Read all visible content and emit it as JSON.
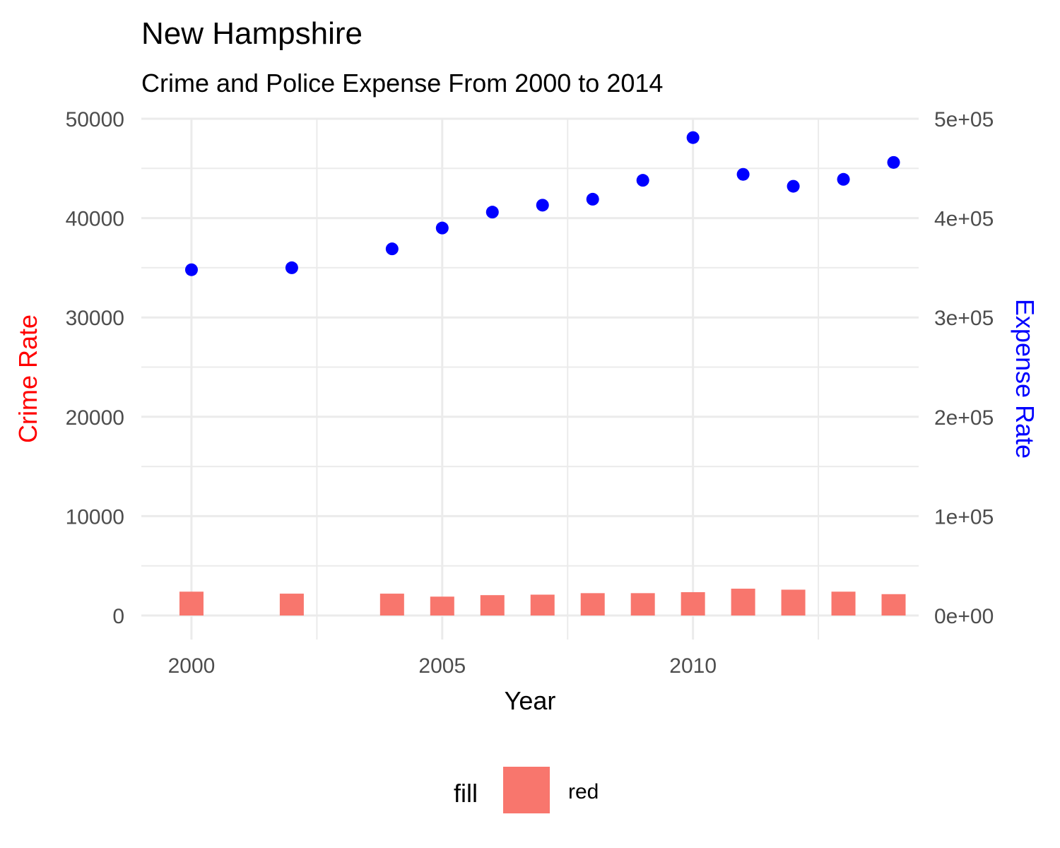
{
  "chart_data": {
    "type": "bar",
    "title": "New Hampshire",
    "subtitle": "Crime and Police Expense From 2000 to 2014",
    "xlabel": "Year",
    "ylabel": "Crime Rate",
    "y2label": "Expense Rate",
    "xlim": [
      1999,
      2014.5
    ],
    "ylim": [
      0,
      50000
    ],
    "y2lim": [
      0,
      500000
    ],
    "x_ticks": [
      2000,
      2005,
      2010
    ],
    "x_tick_labels": [
      "2000",
      "2005",
      "2010"
    ],
    "y_ticks": [
      0,
      10000,
      20000,
      30000,
      40000,
      50000
    ],
    "y_tick_labels": [
      "0",
      "10000",
      "20000",
      "30000",
      "40000",
      "50000"
    ],
    "y2_ticks": [
      0,
      100000,
      200000,
      300000,
      400000,
      500000
    ],
    "y2_tick_labels": [
      "0e+00",
      "1e+05",
      "2e+05",
      "3e+05",
      "4e+05",
      "5e+05"
    ],
    "grid": true,
    "legend_position": "bottom",
    "legend": {
      "title": "fill",
      "entries": [
        {
          "label": "red",
          "color": "#F8766D"
        }
      ]
    },
    "colors": {
      "bars": "#F8766D",
      "points": "#0000FF",
      "ylabel": "#FF0000",
      "y2label": "#0000FF"
    },
    "series": [
      {
        "name": "Crime Rate",
        "type": "bar",
        "axis": "left",
        "x": [
          2000,
          2002,
          2004,
          2005,
          2006,
          2007,
          2008,
          2009,
          2010,
          2011,
          2012,
          2013,
          2014
        ],
        "values": [
          2400,
          2200,
          2200,
          1900,
          2050,
          2100,
          2250,
          2250,
          2350,
          2700,
          2600,
          2400,
          2150
        ]
      },
      {
        "name": "Expense Rate",
        "type": "scatter",
        "axis": "right",
        "x": [
          2000,
          2002,
          2004,
          2005,
          2006,
          2007,
          2008,
          2009,
          2010,
          2011,
          2012,
          2013,
          2014
        ],
        "values": [
          348000,
          350000,
          369000,
          390000,
          406000,
          413000,
          419000,
          438000,
          481000,
          444000,
          432000,
          439000,
          456000
        ]
      }
    ]
  }
}
